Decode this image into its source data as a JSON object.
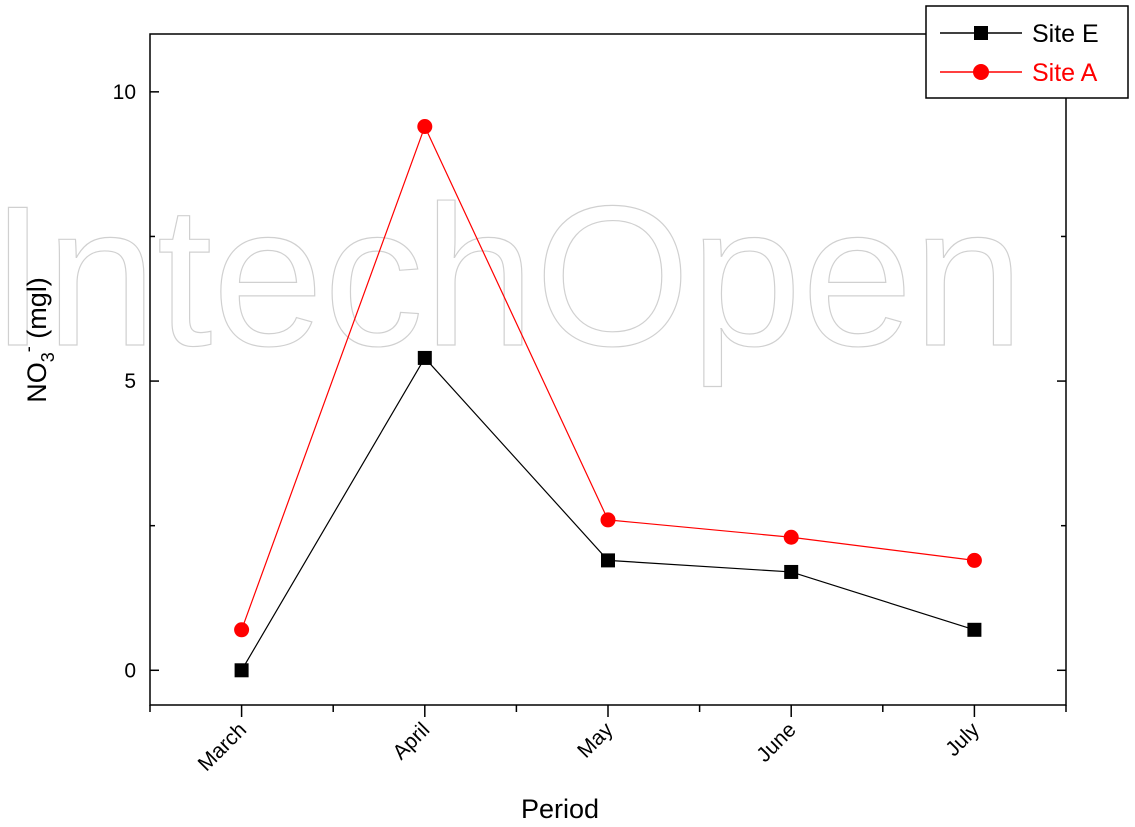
{
  "chart_data": {
    "type": "line",
    "categories": [
      "March",
      "April",
      "May",
      "June",
      "July"
    ],
    "series": [
      {
        "name": "Site E",
        "color": "#000000",
        "marker": "square",
        "values": [
          0.0,
          5.4,
          1.9,
          1.7,
          0.7
        ]
      },
      {
        "name": "Site A",
        "color": "#ff0000",
        "marker": "circle",
        "values": [
          0.7,
          9.4,
          2.6,
          2.3,
          1.9
        ]
      }
    ],
    "title": "",
    "xlabel": "Period",
    "ylabel": "NO3- (mgl)",
    "ylabel_parts": {
      "main": "NO",
      "sub": "3",
      "sup": "-",
      "rest": " (mgl)"
    },
    "ylim": [
      -0.6,
      11.0
    ],
    "yticks": [
      "0",
      "5",
      "10"
    ],
    "grid": false,
    "legend_position": "top-right"
  },
  "watermark": "IntechOpen"
}
